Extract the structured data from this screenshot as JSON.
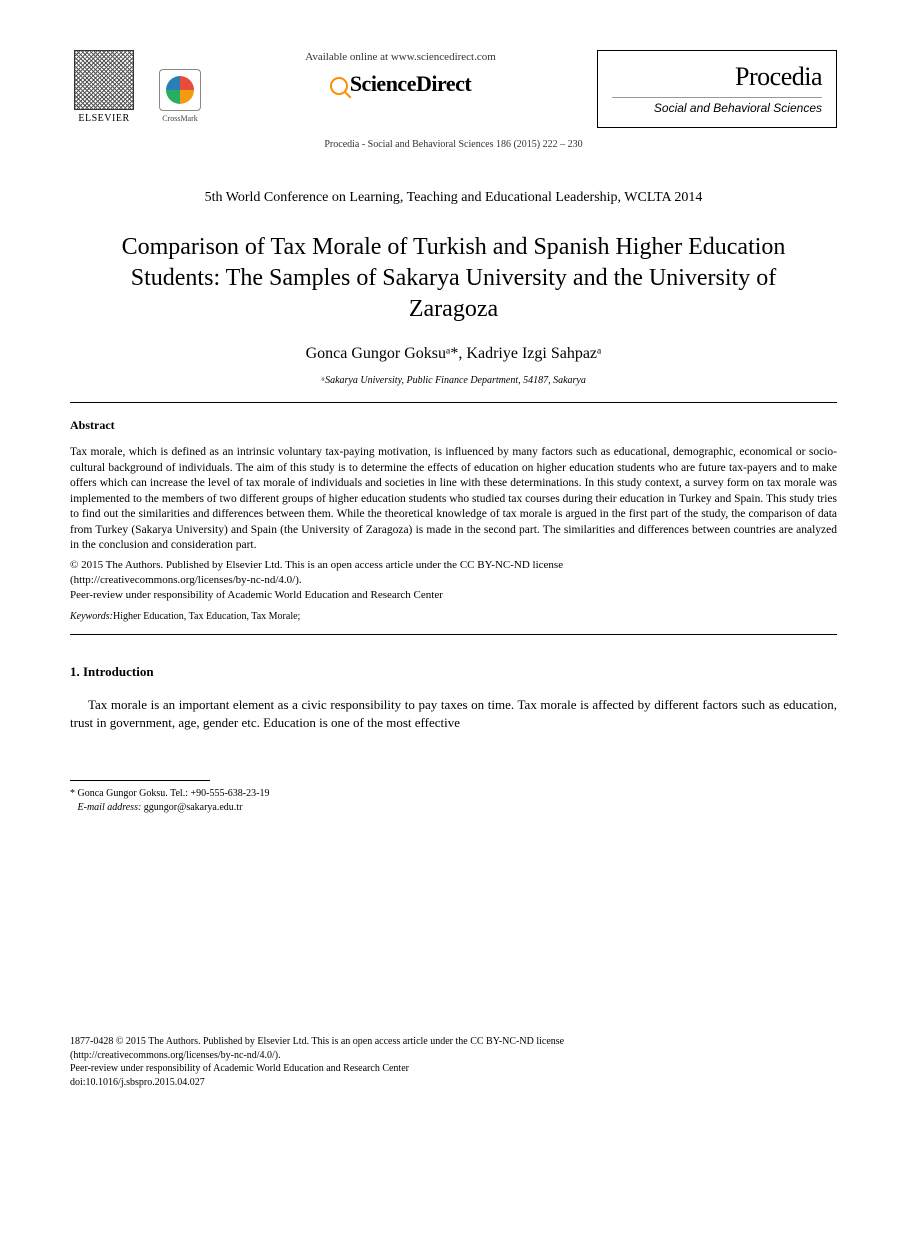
{
  "header": {
    "elsevier_label": "ELSEVIER",
    "crossmark_label": "CrossMark",
    "available_online": "Available online at www.sciencedirect.com",
    "sciencedirect_label": "ScienceDirect",
    "procedia_title": "Procedia",
    "procedia_subtitle": "Social and Behavioral Sciences",
    "citation": "Procedia - Social and Behavioral Sciences 186 (2015) 222 – 230"
  },
  "conference_line": "5th World Conference on Learning, Teaching and Educational Leadership, WCLTA 2014",
  "title": "Comparison of Tax Morale of Turkish and Spanish Higher Education Students: The Samples of Sakarya University and the University of Zaragoza",
  "authors_line": "Gonca Gungor Goksuᵃ*, Kadriye Izgi Sahpazᵃ",
  "affiliation": "ᵃSakarya University, Public Finance Department, 54187, Sakarya",
  "abstract": {
    "heading": "Abstract",
    "body": "Tax morale, which is defined as an intrinsic voluntary tax-paying motivation, is influenced by many factors such as educational, demographic, economical or socio-cultural background of individuals. The aim of this study is to determine the  effects of education on higher education students who are future tax-payers and to make offers which can increase the level of tax morale of individuals and societies in line with these determinations. In this study context, a survey form on tax morale was implemented to the members of two different groups of higher education students who studied tax courses during their education in Turkey and Spain. This study tries to find out the similarities and differences between them. While the theoretical knowledge of tax morale is argued in the first part of the study, the comparison of data from Turkey (Sakarya University) and Spain (the University of Zaragoza) is made in the second part. The similarities and differences between countries are analyzed in the conclusion and consideration part.",
    "license_line1": "© 2015 The Authors. Published by Elsevier Ltd. This is an open access article under the CC BY-NC-ND license",
    "license_link": "(http://creativecommons.org/licenses/by-nc-nd/4.0/).",
    "peer_review": "Peer-review under responsibility of Academic World Education and Research Center",
    "keywords_label": "Keywords:",
    "keywords_text": "Higher Education, Tax Education, Tax Morale;"
  },
  "section1": {
    "heading": "1.  Introduction",
    "body": "Tax morale is an important element as a civic responsibility to pay taxes on time. Tax morale is affected by different factors such as education, trust in government, age, gender etc. Education is one of the most effective"
  },
  "footnote": {
    "corresponding": "* Gonca Gungor Goksu. Tel.: +90-555-638-23-19",
    "email_label": "E-mail address:",
    "email": "ggungor@sakarya.edu.tr"
  },
  "footer": {
    "issn_line": "1877-0428 © 2015 The Authors. Published by Elsevier Ltd. This is an open access article under the CC BY-NC-ND license",
    "license_link": "(http://creativecommons.org/licenses/by-nc-nd/4.0/).",
    "peer_review": "Peer-review under responsibility of Academic World Education and Research Center",
    "doi": "doi:10.1016/j.sbspro.2015.04.027"
  },
  "colors": {
    "text": "#000000",
    "background": "#ffffff",
    "rule": "#000000"
  }
}
